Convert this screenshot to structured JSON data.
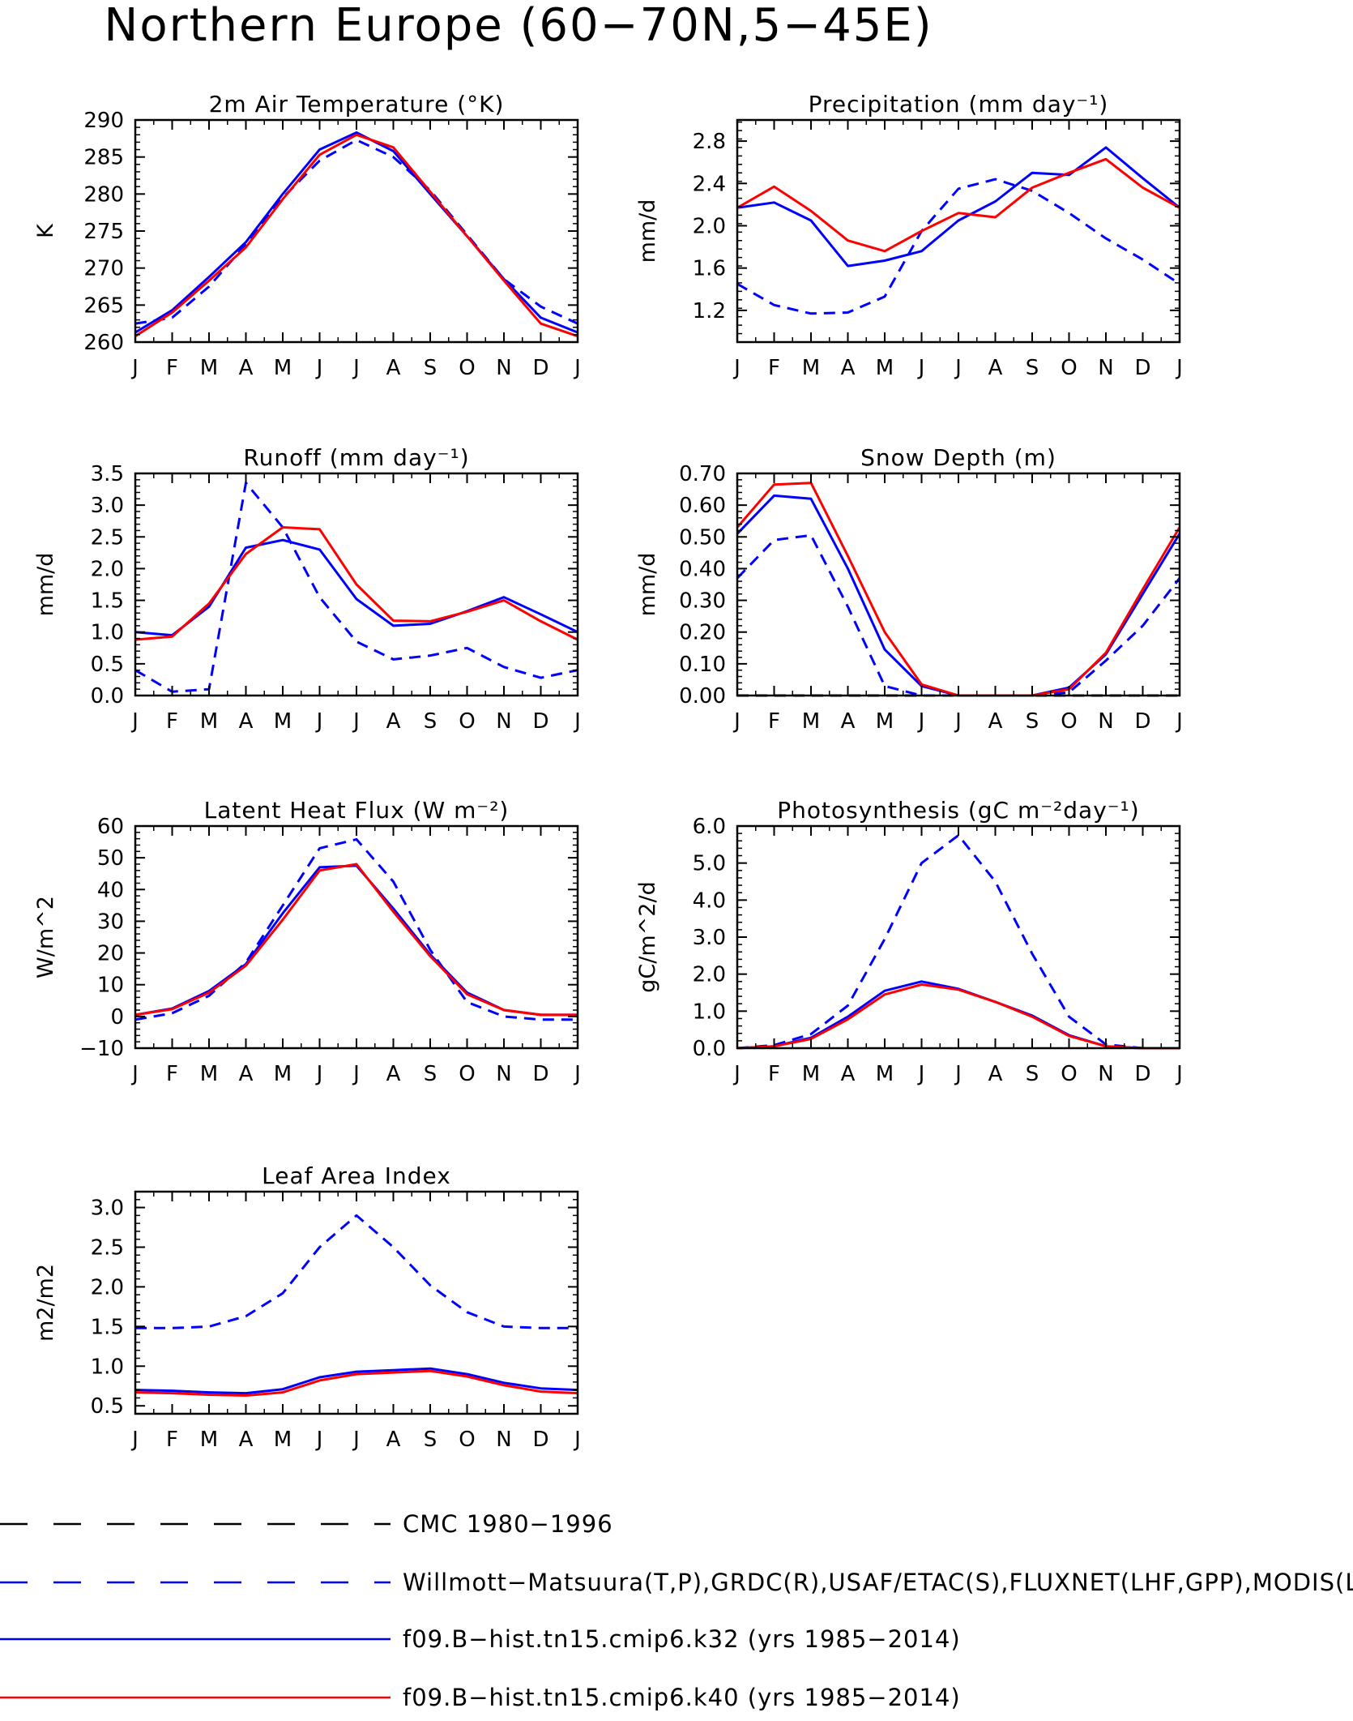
{
  "page": {
    "title": "Northern Europe (60−70N,5−45E)"
  },
  "months": [
    "J",
    "F",
    "M",
    "A",
    "M",
    "J",
    "J",
    "A",
    "S",
    "O",
    "N",
    "D",
    "J"
  ],
  "colors": {
    "obs": "#0000ff",
    "k32": "#0000ff",
    "k40": "#ff0000",
    "cmc": "#000000"
  },
  "legend": [
    {
      "key": "cmc",
      "label": "CMC 1980−1996",
      "color": "#000000",
      "dash": "dashed"
    },
    {
      "key": "obs",
      "label": "Willmott−Matsuura(T,P),GRDC(R),USAF/ETAC(S),FLUXNET(LHF,GPP),MODIS(L",
      "color": "#0000ff",
      "dash": "dashed"
    },
    {
      "key": "k32",
      "label": "f09.B−hist.tn15.cmip6.k32 (yrs 1985−2014)",
      "color": "#0000ff",
      "dash": "solid"
    },
    {
      "key": "k40",
      "label": "f09.B−hist.tn15.cmip6.k40 (yrs 1985−2014)",
      "color": "#ff0000",
      "dash": "solid"
    }
  ],
  "chart_data": [
    {
      "id": "temp",
      "type": "line",
      "title": "2m Air Temperature (°K)",
      "ylabel": "K",
      "ylim": [
        260,
        290
      ],
      "yticks": [
        260,
        265,
        270,
        275,
        280,
        285,
        290
      ],
      "ytick_labels": [
        "260",
        "265",
        "270",
        "275",
        "280",
        "285",
        "290"
      ],
      "series": [
        {
          "key": "obs",
          "values": [
            262.5,
            263.3,
            267.5,
            273.2,
            279.5,
            284.5,
            287.3,
            285.0,
            280.5,
            274.5,
            268.5,
            264.8,
            262.5
          ]
        },
        {
          "key": "k32",
          "values": [
            261.3,
            264.3,
            268.8,
            273.5,
            280.0,
            286.0,
            288.3,
            285.8,
            280.0,
            274.3,
            268.5,
            263.3,
            261.3
          ]
        },
        {
          "key": "k40",
          "values": [
            260.8,
            264.0,
            268.3,
            272.8,
            279.3,
            285.3,
            288.0,
            286.3,
            280.3,
            274.3,
            268.3,
            262.5,
            260.8
          ]
        }
      ]
    },
    {
      "id": "precip",
      "type": "line",
      "title": "Precipitation (mm day⁻¹)",
      "ylabel": "mm/d",
      "ylim": [
        0.9,
        3.0
      ],
      "yticks": [
        1.2,
        1.6,
        2.0,
        2.4,
        2.8
      ],
      "ytick_labels": [
        "1.2",
        "1.6",
        "2.0",
        "2.4",
        "2.8"
      ],
      "series": [
        {
          "key": "obs",
          "values": [
            1.45,
            1.25,
            1.17,
            1.18,
            1.33,
            1.95,
            2.35,
            2.44,
            2.33,
            2.12,
            1.88,
            1.68,
            1.45
          ]
        },
        {
          "key": "k32",
          "values": [
            2.17,
            2.22,
            2.05,
            1.62,
            1.67,
            1.76,
            2.05,
            2.23,
            2.5,
            2.48,
            2.74,
            2.45,
            2.17
          ]
        },
        {
          "key": "k40",
          "values": [
            2.17,
            2.37,
            2.14,
            1.86,
            1.76,
            1.95,
            2.12,
            2.08,
            2.36,
            2.5,
            2.63,
            2.36,
            2.17
          ]
        }
      ]
    },
    {
      "id": "runoff",
      "type": "line",
      "title": "Runoff (mm day⁻¹)",
      "ylabel": "mm/d",
      "ylim": [
        0.0,
        3.5
      ],
      "yticks": [
        0.0,
        0.5,
        1.0,
        1.5,
        2.0,
        2.5,
        3.0,
        3.5
      ],
      "ytick_labels": [
        "0.0",
        "0.5",
        "1.0",
        "1.5",
        "2.0",
        "2.5",
        "3.0",
        "3.5"
      ],
      "series": [
        {
          "key": "obs",
          "values": [
            0.4,
            0.06,
            0.1,
            3.35,
            2.65,
            1.55,
            0.85,
            0.57,
            0.63,
            0.75,
            0.45,
            0.28,
            0.4
          ]
        },
        {
          "key": "k32",
          "values": [
            1.0,
            0.95,
            1.4,
            2.33,
            2.45,
            2.3,
            1.52,
            1.1,
            1.13,
            1.33,
            1.55,
            1.28,
            1.0
          ]
        },
        {
          "key": "k40",
          "values": [
            0.88,
            0.93,
            1.45,
            2.23,
            2.65,
            2.62,
            1.75,
            1.18,
            1.17,
            1.32,
            1.5,
            1.17,
            0.88
          ]
        }
      ]
    },
    {
      "id": "snow",
      "type": "line",
      "title": "Snow Depth (m)",
      "ylabel": "mm/d",
      "ylim": [
        0.0,
        0.7
      ],
      "yticks": [
        0.0,
        0.1,
        0.2,
        0.3,
        0.4,
        0.5,
        0.6,
        0.7
      ],
      "ytick_labels": [
        "0.00",
        "0.10",
        "0.20",
        "0.30",
        "0.40",
        "0.50",
        "0.60",
        "0.70"
      ],
      "series": [
        {
          "key": "cmc",
          "values": [
            0,
            0,
            0,
            0,
            0,
            0,
            0,
            0,
            0,
            0,
            0,
            0,
            0
          ]
        },
        {
          "key": "obs",
          "values": [
            0.37,
            0.49,
            0.505,
            0.28,
            0.03,
            0.0,
            0.0,
            0.0,
            0.0,
            0.01,
            0.11,
            0.22,
            0.37
          ]
        },
        {
          "key": "k32",
          "values": [
            0.51,
            0.63,
            0.62,
            0.4,
            0.145,
            0.03,
            0.0,
            0.0,
            0.0,
            0.025,
            0.13,
            0.32,
            0.51
          ]
        },
        {
          "key": "k40",
          "values": [
            0.53,
            0.665,
            0.67,
            0.44,
            0.2,
            0.035,
            0.0,
            0.0,
            0.0,
            0.02,
            0.135,
            0.335,
            0.53
          ]
        }
      ]
    },
    {
      "id": "lhf",
      "type": "line",
      "title": "Latent Heat Flux (W m⁻²)",
      "ylabel": "W/m^2",
      "ylim": [
        -10,
        60
      ],
      "yticks": [
        -10,
        0,
        10,
        20,
        30,
        40,
        50,
        60
      ],
      "ytick_labels": [
        "−10",
        "0",
        "10",
        "20",
        "30",
        "40",
        "50",
        "60"
      ],
      "series": [
        {
          "key": "obs",
          "values": [
            -1.0,
            1.0,
            6.5,
            17.0,
            35.0,
            53.0,
            55.8,
            42.5,
            21.0,
            4.5,
            0.0,
            -1.0,
            -1.0
          ]
        },
        {
          "key": "k32",
          "values": [
            0.5,
            2.5,
            8.0,
            16.5,
            32.5,
            47.0,
            47.5,
            34.0,
            19.5,
            7.5,
            2.0,
            0.5,
            0.5
          ]
        },
        {
          "key": "k40",
          "values": [
            0.5,
            2.3,
            7.5,
            16.0,
            30.5,
            46.0,
            48.0,
            33.0,
            19.0,
            7.0,
            2.0,
            0.5,
            0.5
          ]
        }
      ]
    },
    {
      "id": "gpp",
      "type": "line",
      "title": "Photosynthesis (gC m⁻²day⁻¹)",
      "ylabel": "gC/m^2/d",
      "ylim": [
        0.0,
        6.0
      ],
      "yticks": [
        0.0,
        1.0,
        2.0,
        3.0,
        4.0,
        5.0,
        6.0
      ],
      "ytick_labels": [
        "0.0",
        "1.0",
        "2.0",
        "3.0",
        "4.0",
        "5.0",
        "6.0"
      ],
      "series": [
        {
          "key": "obs",
          "values": [
            0.0,
            0.08,
            0.38,
            1.15,
            2.95,
            5.0,
            5.75,
            4.5,
            2.55,
            0.85,
            0.1,
            0.0,
            0.0
          ]
        },
        {
          "key": "k32",
          "values": [
            0.0,
            0.05,
            0.28,
            0.85,
            1.55,
            1.8,
            1.6,
            1.25,
            0.88,
            0.35,
            0.05,
            0.0,
            0.0
          ]
        },
        {
          "key": "k40",
          "values": [
            0.0,
            0.05,
            0.25,
            0.78,
            1.45,
            1.72,
            1.58,
            1.25,
            0.85,
            0.33,
            0.05,
            0.0,
            0.0
          ]
        }
      ]
    },
    {
      "id": "lai",
      "type": "line",
      "title": "Leaf Area Index",
      "ylabel": "m2/m2",
      "ylim": [
        0.4,
        3.2
      ],
      "yticks": [
        0.5,
        1.0,
        1.5,
        2.0,
        2.5,
        3.0
      ],
      "ytick_labels": [
        "0.5",
        "1.0",
        "1.5",
        "2.0",
        "2.5",
        "3.0"
      ],
      "series": [
        {
          "key": "obs",
          "values": [
            1.48,
            1.48,
            1.5,
            1.63,
            1.92,
            2.5,
            2.9,
            2.5,
            2.02,
            1.68,
            1.5,
            1.48,
            1.48
          ]
        },
        {
          "key": "k32",
          "values": [
            0.7,
            0.69,
            0.67,
            0.66,
            0.71,
            0.86,
            0.93,
            0.95,
            0.97,
            0.9,
            0.79,
            0.72,
            0.7
          ]
        },
        {
          "key": "k40",
          "values": [
            0.67,
            0.66,
            0.64,
            0.63,
            0.67,
            0.82,
            0.9,
            0.92,
            0.94,
            0.87,
            0.76,
            0.68,
            0.66
          ]
        }
      ]
    }
  ]
}
